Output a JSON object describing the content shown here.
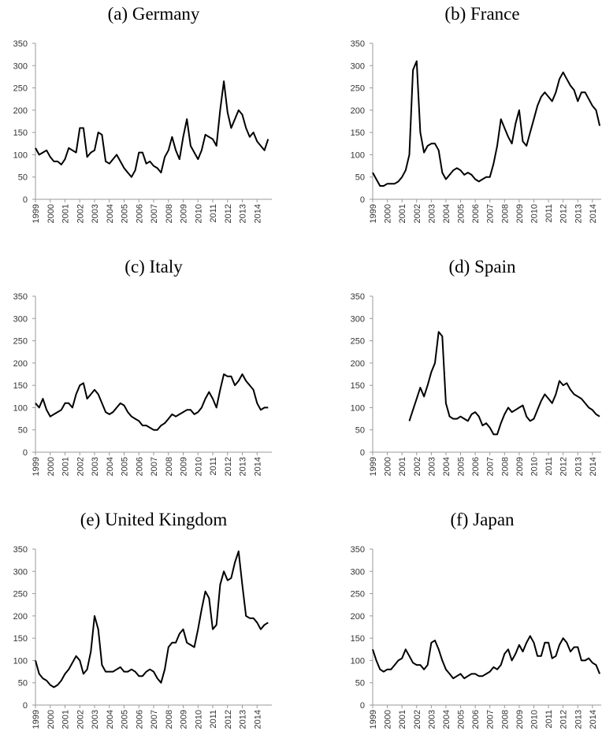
{
  "chart_data": [
    {
      "type": "line",
      "title": "(a) Germany",
      "color": "#000000",
      "xlim": [
        1999,
        2015
      ],
      "ylim": [
        0,
        350
      ],
      "xticks": [
        1999,
        2000,
        2001,
        2002,
        2003,
        2004,
        2005,
        2006,
        2007,
        2008,
        2009,
        2010,
        2011,
        2012,
        2013,
        2014
      ],
      "yticks": [
        0,
        50,
        100,
        150,
        200,
        250,
        300,
        350
      ],
      "x": [
        1999,
        1999.25,
        1999.5,
        1999.75,
        2000,
        2000.25,
        2000.5,
        2000.75,
        2001,
        2001.25,
        2001.5,
        2001.75,
        2002,
        2002.25,
        2002.5,
        2002.75,
        2003,
        2003.25,
        2003.5,
        2003.75,
        2004,
        2004.25,
        2004.5,
        2004.75,
        2005,
        2005.25,
        2005.5,
        2005.75,
        2006,
        2006.25,
        2006.5,
        2006.75,
        2007,
        2007.25,
        2007.5,
        2007.75,
        2008,
        2008.25,
        2008.5,
        2008.75,
        2009,
        2009.25,
        2009.5,
        2009.75,
        2010,
        2010.25,
        2010.5,
        2010.75,
        2011,
        2011.25,
        2011.5,
        2011.75,
        2012,
        2012.25,
        2012.5,
        2012.75,
        2013,
        2013.25,
        2013.5,
        2013.75,
        2014,
        2014.25,
        2014.5,
        2014.75
      ],
      "values": [
        115,
        100,
        105,
        110,
        95,
        85,
        85,
        78,
        90,
        115,
        110,
        105,
        160,
        160,
        95,
        105,
        110,
        150,
        145,
        85,
        80,
        90,
        100,
        85,
        70,
        60,
        50,
        65,
        105,
        105,
        80,
        85,
        75,
        70,
        60,
        95,
        110,
        140,
        110,
        90,
        140,
        180,
        120,
        105,
        90,
        110,
        145,
        140,
        135,
        120,
        200,
        265,
        195,
        160,
        180,
        200,
        190,
        160,
        140,
        150,
        130,
        120,
        110,
        135
      ]
    },
    {
      "type": "line",
      "title": "(b) France",
      "color": "#000000",
      "xlim": [
        1999,
        2014.6
      ],
      "ylim": [
        0,
        350
      ],
      "xticks": [
        1999,
        2000,
        2001,
        2002,
        2003,
        2004,
        2005,
        2006,
        2007,
        2008,
        2009,
        2010,
        2011,
        2012,
        2013,
        2014
      ],
      "yticks": [
        0,
        50,
        100,
        150,
        200,
        250,
        300,
        350
      ],
      "x": [
        1999,
        1999.25,
        1999.5,
        1999.75,
        2000,
        2000.25,
        2000.5,
        2000.75,
        2001,
        2001.25,
        2001.5,
        2001.75,
        2002,
        2002.25,
        2002.5,
        2002.75,
        2003,
        2003.25,
        2003.5,
        2003.75,
        2004,
        2004.25,
        2004.5,
        2004.75,
        2005,
        2005.25,
        2005.5,
        2005.75,
        2006,
        2006.25,
        2006.5,
        2006.75,
        2007,
        2007.25,
        2007.5,
        2007.75,
        2008,
        2008.25,
        2008.5,
        2008.75,
        2009,
        2009.25,
        2009.5,
        2009.75,
        2010,
        2010.25,
        2010.5,
        2010.75,
        2011,
        2011.25,
        2011.5,
        2011.75,
        2012,
        2012.25,
        2012.5,
        2012.75,
        2013,
        2013.25,
        2013.5,
        2013.75,
        2014,
        2014.25,
        2014.5
      ],
      "values": [
        60,
        45,
        30,
        30,
        35,
        35,
        35,
        40,
        50,
        65,
        100,
        290,
        310,
        150,
        105,
        120,
        125,
        125,
        110,
        60,
        45,
        55,
        65,
        70,
        65,
        55,
        60,
        55,
        45,
        40,
        45,
        50,
        50,
        80,
        120,
        180,
        160,
        140,
        125,
        170,
        200,
        130,
        120,
        150,
        180,
        210,
        230,
        240,
        230,
        220,
        240,
        270,
        285,
        270,
        255,
        245,
        220,
        240,
        240,
        225,
        210,
        200,
        165
      ]
    },
    {
      "type": "line",
      "title": "(c) Italy",
      "color": "#000000",
      "xlim": [
        1999,
        2015
      ],
      "ylim": [
        0,
        350
      ],
      "xticks": [
        1999,
        2000,
        2001,
        2002,
        2003,
        2004,
        2005,
        2006,
        2007,
        2008,
        2009,
        2010,
        2011,
        2012,
        2013,
        2014
      ],
      "yticks": [
        0,
        50,
        100,
        150,
        200,
        250,
        300,
        350
      ],
      "x": [
        1999,
        1999.25,
        1999.5,
        1999.75,
        2000,
        2000.25,
        2000.5,
        2000.75,
        2001,
        2001.25,
        2001.5,
        2001.75,
        2002,
        2002.25,
        2002.5,
        2002.75,
        2003,
        2003.25,
        2003.5,
        2003.75,
        2004,
        2004.25,
        2004.5,
        2004.75,
        2005,
        2005.25,
        2005.5,
        2005.75,
        2006,
        2006.25,
        2006.5,
        2006.75,
        2007,
        2007.25,
        2007.5,
        2007.75,
        2008,
        2008.25,
        2008.5,
        2008.75,
        2009,
        2009.25,
        2009.5,
        2009.75,
        2010,
        2010.25,
        2010.5,
        2010.75,
        2011,
        2011.25,
        2011.5,
        2011.75,
        2012,
        2012.25,
        2012.5,
        2012.75,
        2013,
        2013.25,
        2013.5,
        2013.75,
        2014,
        2014.25,
        2014.5,
        2014.75
      ],
      "values": [
        110,
        100,
        120,
        95,
        80,
        85,
        90,
        95,
        110,
        110,
        100,
        130,
        150,
        155,
        120,
        130,
        140,
        130,
        110,
        90,
        85,
        90,
        100,
        110,
        105,
        90,
        80,
        75,
        70,
        60,
        60,
        55,
        50,
        50,
        60,
        65,
        75,
        85,
        80,
        85,
        90,
        95,
        95,
        85,
        90,
        100,
        120,
        135,
        120,
        100,
        140,
        175,
        170,
        170,
        150,
        160,
        175,
        160,
        150,
        140,
        110,
        95,
        100,
        100
      ]
    },
    {
      "type": "line",
      "title": "(d) Spain",
      "color": "#000000",
      "xlim": [
        1999,
        2014.6
      ],
      "ylim": [
        0,
        350
      ],
      "xticks": [
        1999,
        2000,
        2001,
        2002,
        2003,
        2004,
        2005,
        2006,
        2007,
        2008,
        2009,
        2010,
        2011,
        2012,
        2013,
        2014
      ],
      "yticks": [
        0,
        50,
        100,
        150,
        200,
        250,
        300,
        350
      ],
      "x": [
        2001.5,
        2001.75,
        2002,
        2002.25,
        2002.5,
        2002.75,
        2003,
        2003.25,
        2003.5,
        2003.75,
        2004,
        2004.25,
        2004.5,
        2004.75,
        2005,
        2005.25,
        2005.5,
        2005.75,
        2006,
        2006.25,
        2006.5,
        2006.75,
        2007,
        2007.25,
        2007.5,
        2007.75,
        2008,
        2008.25,
        2008.5,
        2008.75,
        2009,
        2009.25,
        2009.5,
        2009.75,
        2010,
        2010.25,
        2010.5,
        2010.75,
        2011,
        2011.25,
        2011.5,
        2011.75,
        2012,
        2012.25,
        2012.5,
        2012.75,
        2013,
        2013.25,
        2013.5,
        2013.75,
        2014,
        2014.25,
        2014.5
      ],
      "values": [
        70,
        95,
        120,
        145,
        125,
        150,
        180,
        200,
        270,
        260,
        110,
        80,
        75,
        75,
        80,
        75,
        70,
        85,
        90,
        80,
        60,
        65,
        55,
        40,
        40,
        65,
        85,
        100,
        90,
        95,
        100,
        105,
        80,
        70,
        75,
        95,
        115,
        130,
        120,
        110,
        130,
        160,
        150,
        155,
        140,
        130,
        125,
        120,
        110,
        100,
        95,
        85,
        80
      ]
    },
    {
      "type": "line",
      "title": "(e) United Kingdom",
      "color": "#000000",
      "xlim": [
        1999,
        2015
      ],
      "ylim": [
        0,
        350
      ],
      "xticks": [
        1999,
        2000,
        2001,
        2002,
        2003,
        2004,
        2005,
        2006,
        2007,
        2008,
        2009,
        2010,
        2011,
        2012,
        2013,
        2014
      ],
      "yticks": [
        0,
        50,
        100,
        150,
        200,
        250,
        300,
        350
      ],
      "x": [
        1999,
        1999.25,
        1999.5,
        1999.75,
        2000,
        2000.25,
        2000.5,
        2000.75,
        2001,
        2001.25,
        2001.5,
        2001.75,
        2002,
        2002.25,
        2002.5,
        2002.75,
        2003,
        2003.25,
        2003.5,
        2003.75,
        2004,
        2004.25,
        2004.5,
        2004.75,
        2005,
        2005.25,
        2005.5,
        2005.75,
        2006,
        2006.25,
        2006.5,
        2006.75,
        2007,
        2007.25,
        2007.5,
        2007.75,
        2008,
        2008.25,
        2008.5,
        2008.75,
        2009,
        2009.25,
        2009.5,
        2009.75,
        2010,
        2010.25,
        2010.5,
        2010.75,
        2011,
        2011.25,
        2011.5,
        2011.75,
        2012,
        2012.25,
        2012.5,
        2012.75,
        2013,
        2013.25,
        2013.5,
        2013.75,
        2014,
        2014.25,
        2014.5,
        2014.75
      ],
      "values": [
        100,
        70,
        60,
        55,
        45,
        40,
        45,
        55,
        70,
        80,
        95,
        110,
        100,
        70,
        80,
        120,
        200,
        170,
        90,
        75,
        75,
        75,
        80,
        85,
        75,
        75,
        80,
        75,
        65,
        65,
        75,
        80,
        75,
        60,
        50,
        80,
        130,
        140,
        140,
        160,
        170,
        140,
        135,
        130,
        170,
        215,
        255,
        240,
        170,
        180,
        270,
        300,
        280,
        285,
        320,
        345,
        270,
        200,
        195,
        195,
        185,
        170,
        180,
        185
      ]
    },
    {
      "type": "line",
      "title": "(f) Japan",
      "color": "#000000",
      "xlim": [
        1999,
        2014.6
      ],
      "ylim": [
        0,
        350
      ],
      "xticks": [
        1999,
        2000,
        2001,
        2002,
        2003,
        2004,
        2005,
        2006,
        2007,
        2008,
        2009,
        2010,
        2011,
        2012,
        2013,
        2014
      ],
      "yticks": [
        0,
        50,
        100,
        150,
        200,
        250,
        300,
        350
      ],
      "x": [
        1999,
        1999.25,
        1999.5,
        1999.75,
        2000,
        2000.25,
        2000.5,
        2000.75,
        2001,
        2001.25,
        2001.5,
        2001.75,
        2002,
        2002.25,
        2002.5,
        2002.75,
        2003,
        2003.25,
        2003.5,
        2003.75,
        2004,
        2004.25,
        2004.5,
        2004.75,
        2005,
        2005.25,
        2005.5,
        2005.75,
        2006,
        2006.25,
        2006.5,
        2006.75,
        2007,
        2007.25,
        2007.5,
        2007.75,
        2008,
        2008.25,
        2008.5,
        2008.75,
        2009,
        2009.25,
        2009.5,
        2009.75,
        2010,
        2010.25,
        2010.5,
        2010.75,
        2011,
        2011.25,
        2011.5,
        2011.75,
        2012,
        2012.25,
        2012.5,
        2012.75,
        2013,
        2013.25,
        2013.5,
        2013.75,
        2014,
        2014.25,
        2014.5
      ],
      "values": [
        125,
        100,
        80,
        75,
        80,
        80,
        90,
        100,
        105,
        125,
        110,
        95,
        90,
        90,
        80,
        90,
        140,
        145,
        125,
        100,
        80,
        70,
        60,
        65,
        70,
        60,
        65,
        70,
        70,
        65,
        65,
        70,
        75,
        85,
        80,
        90,
        115,
        125,
        100,
        115,
        135,
        120,
        140,
        155,
        140,
        110,
        110,
        140,
        140,
        105,
        110,
        135,
        150,
        140,
        120,
        130,
        130,
        100,
        100,
        105,
        95,
        90,
        70
      ]
    }
  ]
}
